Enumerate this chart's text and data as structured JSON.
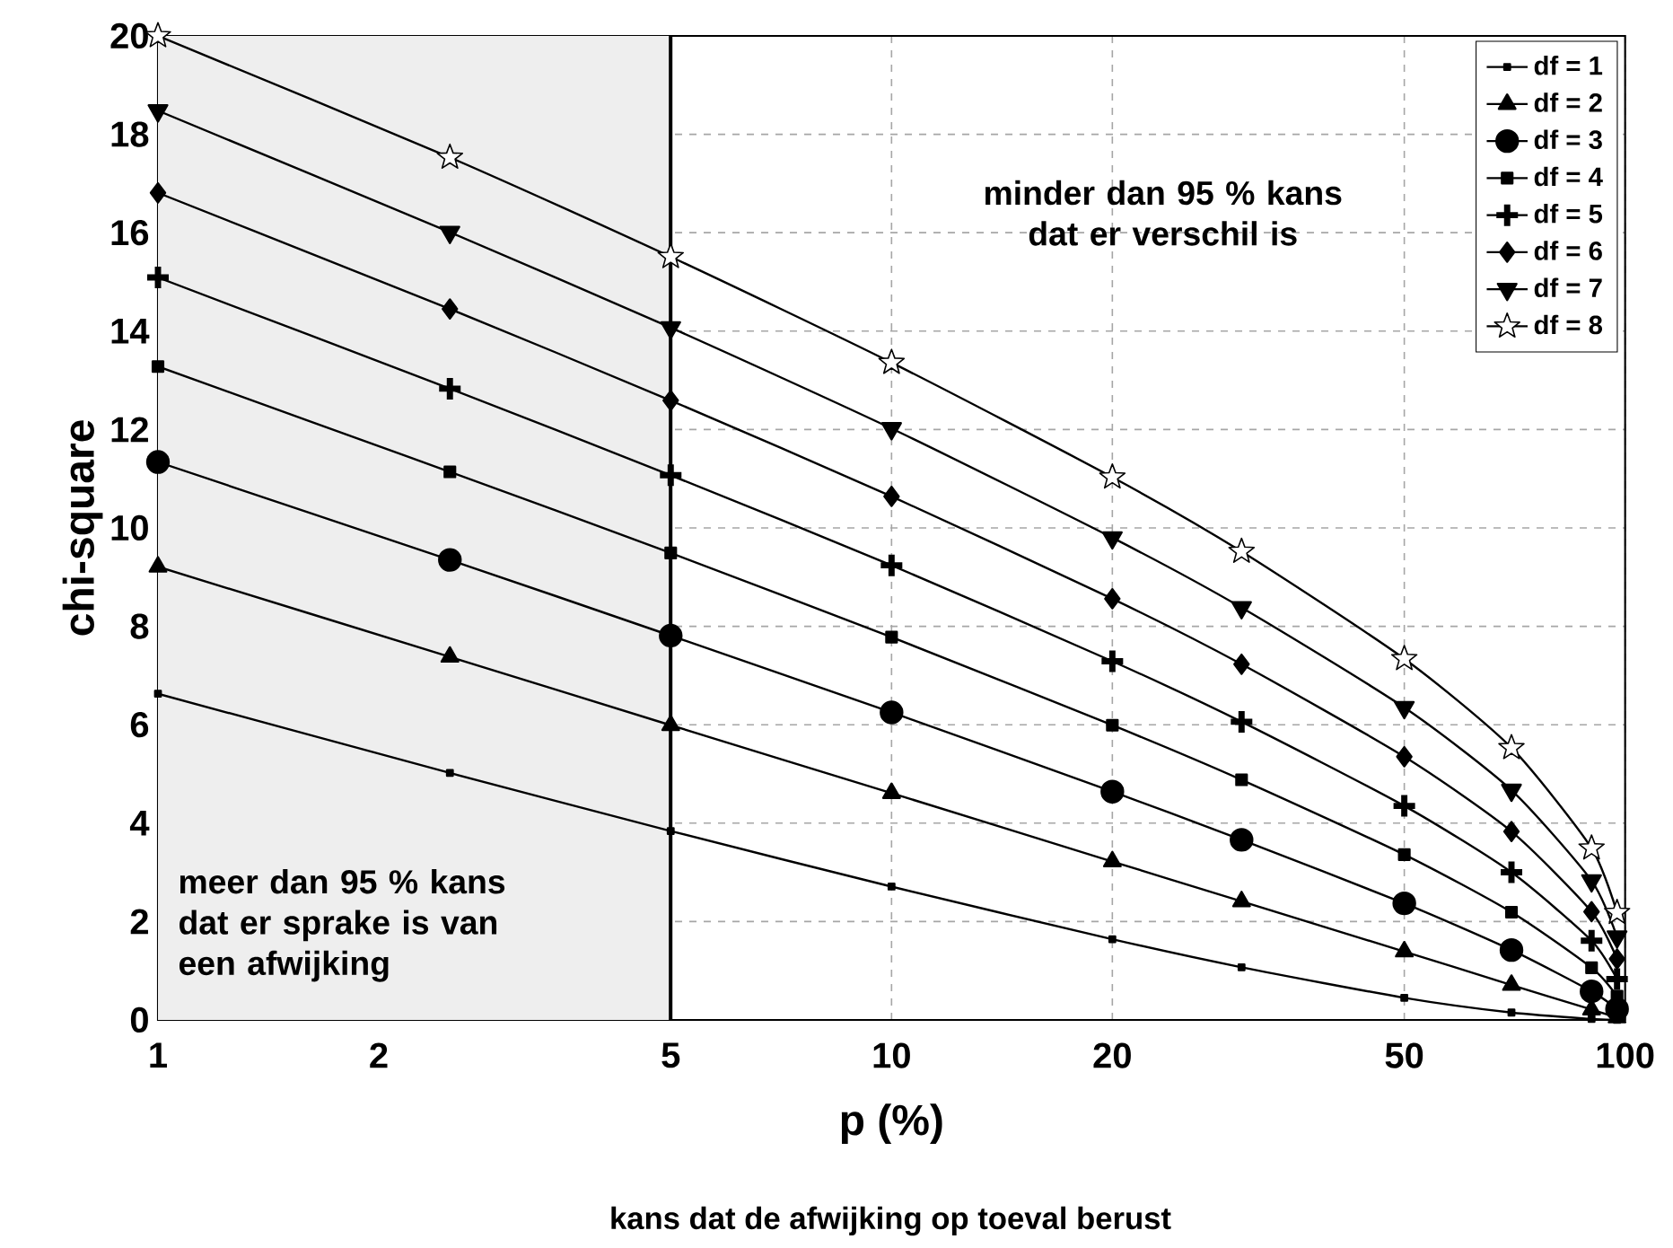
{
  "chart_data": {
    "type": "line",
    "xlabel": "p (%)",
    "ylabel": "chi-square",
    "subtitle": "kans dat de afwijking op toeval berust",
    "x": [
      1,
      2.5,
      5,
      10,
      20,
      30,
      50,
      70,
      90,
      97.5
    ],
    "xlim": [
      1,
      100
    ],
    "ylim": [
      0,
      20
    ],
    "xticks": [
      1,
      2,
      5,
      10,
      20,
      50,
      100
    ],
    "yticks": [
      0,
      2,
      4,
      6,
      8,
      10,
      12,
      14,
      16,
      18,
      20
    ],
    "log": "x",
    "grid": true,
    "legend": "top right",
    "line_style": "solid",
    "series": [
      {
        "name": "df = 1",
        "color": "#000000",
        "marker": "square",
        "values": [
          6.63,
          5.02,
          3.84,
          2.71,
          1.64,
          1.07,
          0.45,
          0.15,
          0.02,
          0.0
        ]
      },
      {
        "name": "df = 2",
        "color": "#000000",
        "marker": "triangle",
        "values": [
          9.21,
          7.38,
          5.99,
          4.61,
          3.22,
          2.41,
          1.39,
          0.71,
          0.21,
          0.05
        ]
      },
      {
        "name": "df = 3",
        "color": "#000000",
        "marker": "circle",
        "values": [
          11.34,
          9.35,
          7.81,
          6.25,
          4.64,
          3.66,
          2.37,
          1.42,
          0.58,
          0.22
        ]
      },
      {
        "name": "df = 4",
        "color": "#000000",
        "marker": "square",
        "values": [
          13.28,
          11.14,
          9.49,
          7.78,
          5.99,
          4.88,
          3.36,
          2.19,
          1.06,
          0.48
        ]
      },
      {
        "name": "df = 5",
        "color": "#000000",
        "marker": "cross",
        "values": [
          15.09,
          12.83,
          11.07,
          9.24,
          7.29,
          6.06,
          4.35,
          3.0,
          1.61,
          0.83
        ]
      },
      {
        "name": "df = 6",
        "color": "#000000",
        "marker": "diamond",
        "values": [
          16.81,
          14.45,
          12.59,
          10.64,
          8.56,
          7.23,
          5.35,
          3.83,
          2.2,
          1.24
        ]
      },
      {
        "name": "df = 7",
        "color": "#000000",
        "marker": "triangle_down",
        "values": [
          18.48,
          16.01,
          14.07,
          12.02,
          9.8,
          8.38,
          6.35,
          4.67,
          2.83,
          1.69
        ]
      },
      {
        "name": "df = 8",
        "color": "#000000",
        "marker": "star",
        "values": [
          20.0,
          17.53,
          15.51,
          13.36,
          11.03,
          9.52,
          7.34,
          5.53,
          3.49,
          2.18
        ]
      }
    ],
    "bands": [
      {
        "axis": "x",
        "from": 1,
        "to": 5,
        "color": "#eeeeee"
      }
    ],
    "ref_lines": [
      {
        "axis": "x",
        "value": 5,
        "color": "#000000",
        "line_style": "solid"
      }
    ],
    "annotations": [
      "minder dan 95 %  kans dat er verschil is",
      "meer dan 95 % kans dat er sprake is van een afwijking"
    ]
  }
}
